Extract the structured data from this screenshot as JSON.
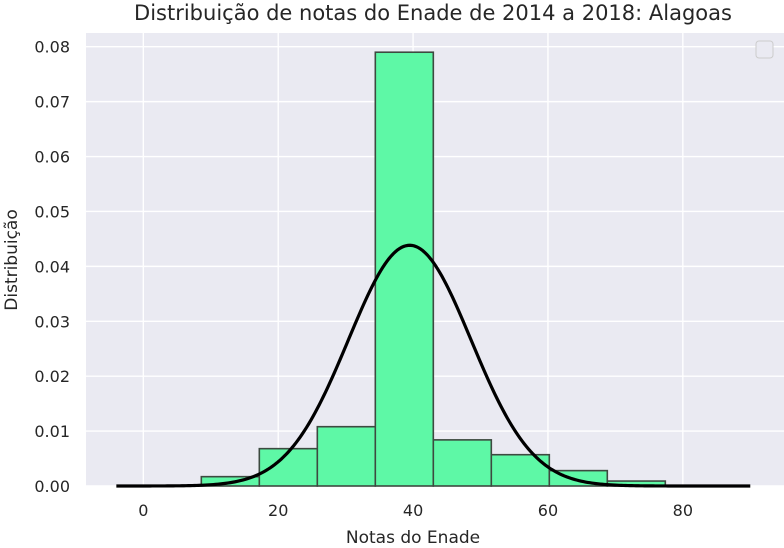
{
  "chart_data": {
    "type": "bar",
    "title": "Distribuição de notas do Enade de 2014 a 2018: Alagoas",
    "xlabel": "Notas do Enade",
    "ylabel": "Distribuição",
    "xlim": [
      -8.5,
      95
    ],
    "ylim": [
      0,
      0.0825
    ],
    "xticks": [
      0,
      20,
      40,
      60,
      80
    ],
    "yticks": [
      0,
      0.01,
      0.02,
      0.03,
      0.04,
      0.05,
      0.06,
      0.07,
      0.08
    ],
    "xtick_labels": [
      "0",
      "20",
      "40",
      "60",
      "80"
    ],
    "ytick_labels": [
      "0.00",
      "0.01",
      "0.02",
      "0.03",
      "0.04",
      "0.05",
      "0.06",
      "0.07",
      "0.08"
    ],
    "grid": true,
    "legend": "top-right",
    "histogram": {
      "bin_edges": [
        8.6,
        17.2,
        25.8,
        34.4,
        43.0,
        51.6,
        60.2,
        68.8,
        77.4
      ],
      "density": [
        0.0017,
        0.0068,
        0.0108,
        0.079,
        0.0084,
        0.0057,
        0.0028,
        0.0009
      ]
    },
    "normal_curve": {
      "mean": 39.5,
      "std": 9.1,
      "x_range": [
        -4,
        90
      ]
    },
    "colors": {
      "bar_fill": "#5ef8a6",
      "bar_edge": "#3d4a40",
      "curve": "#000000",
      "plot_background": "#eaeaf2",
      "grid": "#ffffff"
    }
  }
}
